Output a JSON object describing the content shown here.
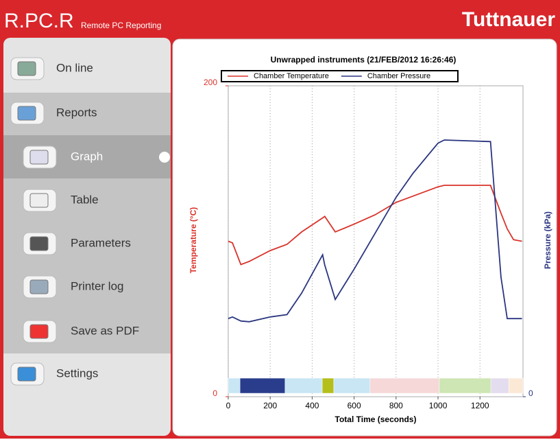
{
  "app": {
    "logo": "R.PC.R",
    "subtitle": "Remote PC Reporting",
    "brand": "Tuttnauer",
    "menu": [
      "On line",
      "Reports",
      "Graph",
      "Table",
      "Parameters",
      "Printer log",
      "Save as PDF",
      "Settings"
    ]
  },
  "chart_data": {
    "type": "line",
    "title": "Unwrapped instruments (21/FEB/2012 16:26:46)",
    "xlabel": "Total Time (seconds)",
    "ylabel": "Temperature (°C)",
    "y2label": "Pressure (kPa)",
    "x": [
      0,
      20,
      60,
      100,
      200,
      280,
      350,
      450,
      460,
      510,
      600,
      700,
      800,
      880,
      1000,
      1030,
      1250,
      1300,
      1330,
      1360,
      1400
    ],
    "series": [
      {
        "name": "Chamber Temperature",
        "color": "#d9322a",
        "values": [
          100,
          99,
          85,
          87,
          94,
          98,
          106,
          115,
          116,
          106,
          111,
          117,
          125,
          129,
          135,
          136,
          136,
          118,
          108,
          101,
          100
        ]
      },
      {
        "name": "Chamber Pressure",
        "color": "#2a3580",
        "axis": "y2",
        "values": [
          98,
          100,
          95,
          94,
          100,
          103,
          130,
          178,
          165,
          122,
          160,
          205,
          250,
          280,
          318,
          322,
          320,
          150,
          98,
          98,
          98
        ]
      }
    ],
    "xlim": [
      0,
      1405
    ],
    "xticks": [
      0,
      200,
      400,
      600,
      800,
      1000,
      1200
    ],
    "ylim": [
      0,
      200
    ],
    "yticks": [
      0,
      200
    ],
    "y2lim": [
      0,
      390
    ],
    "y2ticks": [
      0
    ],
    "grid": true,
    "legend": "top",
    "phases": [
      {
        "start": 0,
        "end": 56,
        "color": "#c8e6f4"
      },
      {
        "start": 56,
        "end": 271,
        "color": "#2a3d8c"
      },
      {
        "start": 271,
        "end": 448,
        "color": "#c8e6f4"
      },
      {
        "start": 448,
        "end": 503,
        "color": "#b5bf1c"
      },
      {
        "start": 503,
        "end": 676,
        "color": "#c8e6f4"
      },
      {
        "start": 676,
        "end": 1006,
        "color": "#f6d8d8"
      },
      {
        "start": 1006,
        "end": 1252,
        "color": "#cde6b4"
      },
      {
        "start": 1252,
        "end": 1337,
        "color": "#e4dcef"
      },
      {
        "start": 1337,
        "end": 1405,
        "color": "#fbe9d6"
      }
    ]
  }
}
